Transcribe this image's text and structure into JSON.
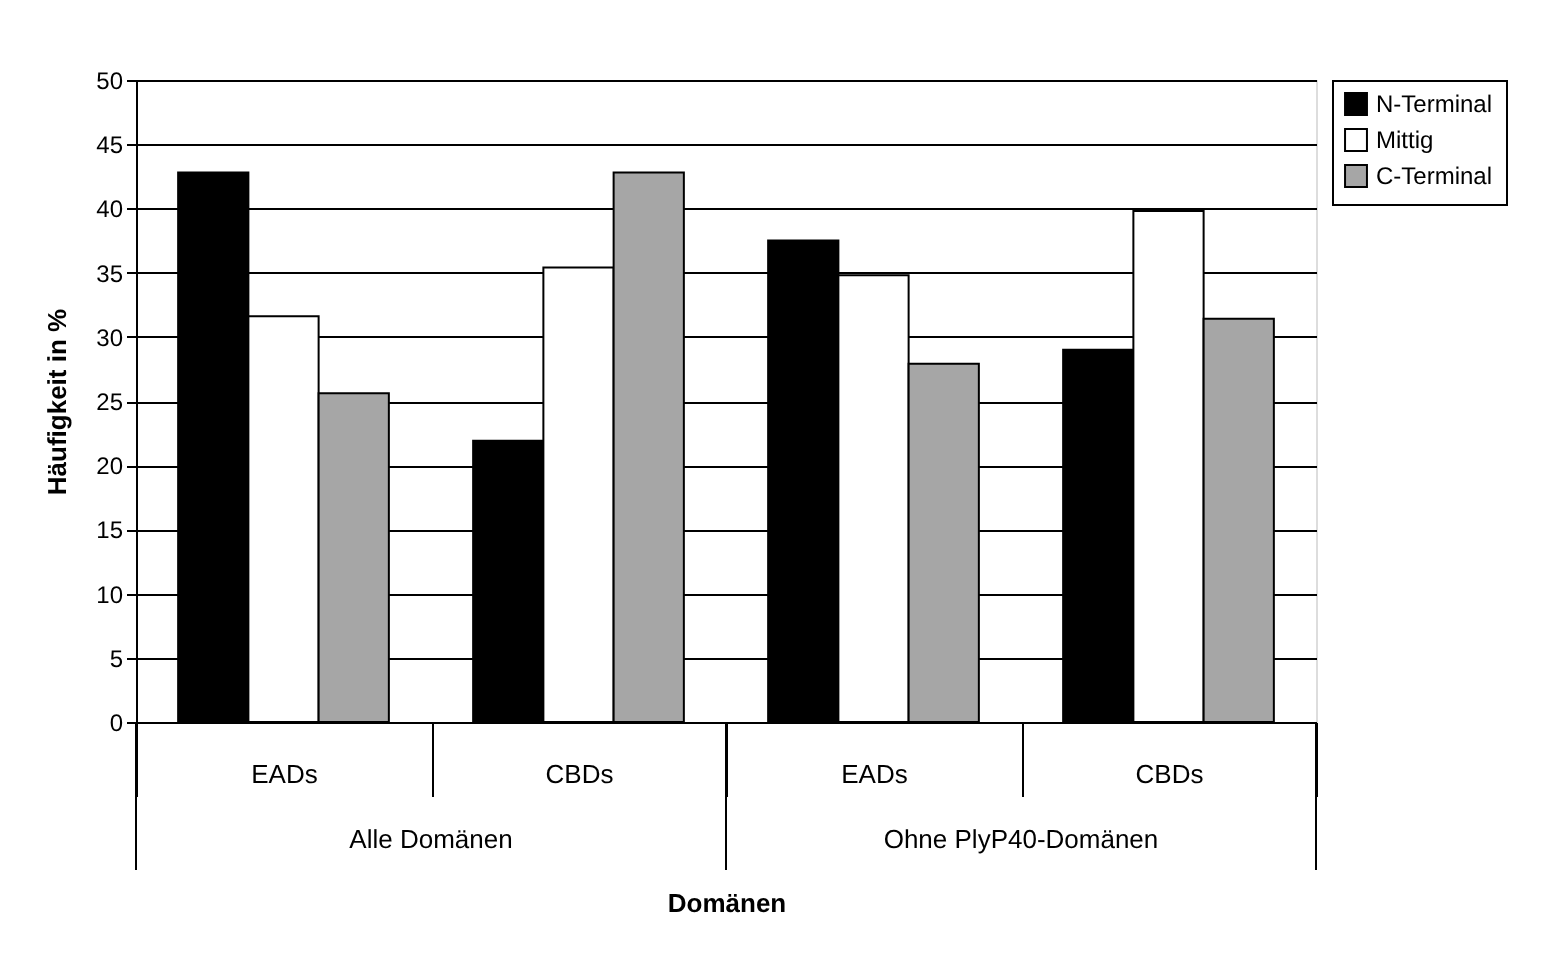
{
  "chart_data": {
    "type": "bar",
    "xlabel": "Domänen",
    "ylabel": "Häufigkeit in %",
    "categories": [
      "EADs",
      "CBDs",
      "EADs",
      "CBDs"
    ],
    "annotations": [
      "Alle Domänen",
      "Ohne PlyP40-Domänen"
    ],
    "series": [
      {
        "name": "N-Terminal",
        "color": "#000000",
        "values": [
          42.8,
          21.9,
          37.5,
          29.0
        ]
      },
      {
        "name": "Mittig",
        "color": "#ffffff",
        "values": [
          31.6,
          35.4,
          34.8,
          39.8
        ]
      },
      {
        "name": "C-Terminal",
        "color": "#a6a6a6",
        "values": [
          25.6,
          42.8,
          27.9,
          31.4
        ]
      }
    ],
    "ylim": [
      0,
      50
    ],
    "yticks": [
      0,
      5,
      10,
      15,
      20,
      25,
      30,
      35,
      40,
      45,
      50
    ],
    "grid": "y",
    "legend": "right"
  }
}
